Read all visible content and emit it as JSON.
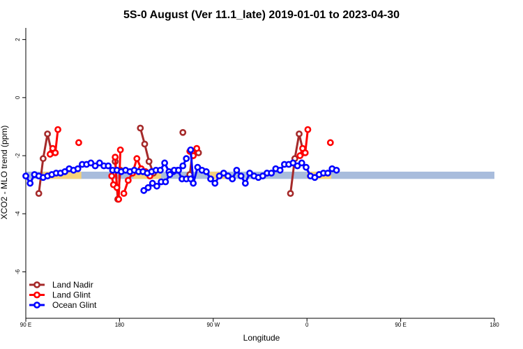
{
  "chart_data": {
    "type": "line",
    "title": "5S-0 August (Ver 11.1_late)   2019-01-01 to 2023-04-30",
    "xlabel": "Longitude",
    "ylabel": "XCO2 - MLO trend (ppm)",
    "xlim": [
      -90,
      180
    ],
    "ylim": [
      -7.6,
      2.4
    ],
    "xticks": [
      -90,
      -36,
      18,
      72,
      126,
      180
    ],
    "xtick_labels": [
      "90 E",
      "180",
      "90 W",
      "0",
      "90 E",
      "180"
    ],
    "yticks": [
      -6,
      -4,
      -2,
      0,
      2
    ],
    "ytick_labels": [
      "-6",
      "-4",
      "-2",
      "0",
      "2"
    ],
    "legend_position": "bottom-left",
    "background_band": {
      "y_range": [
        -2.8,
        -2.55
      ],
      "base_color": "#a8bcdc",
      "land_color": "#f6d27a",
      "land_ranges": [
        [
          -80,
          -58
        ],
        [
          -28,
          -12
        ],
        [
          16,
          26
        ],
        [
          72,
          86
        ]
      ]
    },
    "series": [
      {
        "name": "Land Nadir",
        "color": "#a52a2a",
        "segments": [
          [
            [
              -82.5,
              -3.3
            ],
            [
              -80.0,
              -2.1
            ],
            [
              -77.5,
              -1.25
            ],
            [
              -75.0,
              -1.9
            ]
          ],
          [
            [
              -38.5,
              -2.2
            ],
            [
              -37.0,
              -3.5
            ],
            [
              -35.5,
              -2.5
            ]
          ],
          [
            [
              -24.0,
              -1.05
            ],
            [
              -21.5,
              -1.6
            ],
            [
              -19.0,
              -2.2
            ],
            [
              -16.5,
              -2.6
            ]
          ],
          [
            [
              4.5,
              -2.65
            ],
            [
              6.0,
              -1.9
            ]
          ],
          [
            [
              62.5,
              -3.3
            ],
            [
              65.0,
              -2.1
            ],
            [
              67.5,
              -1.25
            ],
            [
              70.0,
              -1.9
            ]
          ]
        ],
        "points": [
          [
            0.5,
            -1.2
          ],
          [
            9.5,
            -1.9
          ]
        ]
      },
      {
        "name": "Land Glint",
        "color": "#ff0000",
        "segments": [
          [
            [
              -76.0,
              -1.95
            ],
            [
              -74.5,
              -1.75
            ],
            [
              -73.0,
              -1.9
            ],
            [
              -71.5,
              -1.1
            ]
          ],
          [
            [
              -40.5,
              -2.7
            ],
            [
              -39.5,
              -3.0
            ]
          ],
          [
            [
              -38.5,
              -2.05
            ],
            [
              -37.5,
              -3.1
            ],
            [
              -36.5,
              -3.5
            ],
            [
              -35.5,
              -1.8
            ]
          ],
          [
            [
              -33.5,
              -3.3
            ],
            [
              -31.0,
              -2.85
            ],
            [
              -28.5,
              -2.6
            ],
            [
              -26.0,
              -2.1
            ],
            [
              -23.5,
              -2.45
            ],
            [
              -21.0,
              -2.55
            ],
            [
              -18.5,
              -2.7
            ]
          ],
          [
            [
              4.5,
              -1.85
            ],
            [
              6.5,
              -2.0
            ],
            [
              8.5,
              -1.75
            ]
          ],
          [
            [
              68.0,
              -2.0
            ],
            [
              69.5,
              -1.75
            ],
            [
              71.0,
              -1.9
            ],
            [
              72.5,
              -1.1
            ]
          ]
        ],
        "points": [
          [
            -59.5,
            -1.55
          ],
          [
            85.5,
            -1.55
          ]
        ]
      },
      {
        "name": "Ocean Glint",
        "color": "#0000ff",
        "segments": [
          [
            [
              -90.0,
              -2.7
            ],
            [
              -87.5,
              -2.95
            ],
            [
              -85.0,
              -2.65
            ],
            [
              -82.5,
              -2.7
            ],
            [
              -80.0,
              -2.75
            ],
            [
              -77.5,
              -2.7
            ],
            [
              -75.0,
              -2.65
            ],
            [
              -72.5,
              -2.6
            ],
            [
              -70.0,
              -2.6
            ],
            [
              -67.5,
              -2.55
            ],
            [
              -65.0,
              -2.45
            ],
            [
              -62.5,
              -2.5
            ],
            [
              -60.0,
              -2.45
            ],
            [
              -57.5,
              -2.3
            ],
            [
              -55.0,
              -2.3
            ],
            [
              -52.5,
              -2.25
            ],
            [
              -50.0,
              -2.35
            ],
            [
              -47.5,
              -2.25
            ],
            [
              -45.0,
              -2.35
            ],
            [
              -42.5,
              -2.35
            ],
            [
              -40.0,
              -2.5
            ],
            [
              -37.5,
              -2.5
            ],
            [
              -35.0,
              -2.55
            ],
            [
              -32.5,
              -2.5
            ],
            [
              -30.0,
              -2.55
            ],
            [
              -27.5,
              -2.5
            ],
            [
              -25.0,
              -2.55
            ],
            [
              -22.5,
              -2.55
            ],
            [
              -20.0,
              -2.6
            ],
            [
              -17.5,
              -2.55
            ],
            [
              -15.0,
              -2.5
            ],
            [
              -12.5,
              -2.5
            ],
            [
              -10.0,
              -2.25
            ],
            [
              -7.5,
              -2.55
            ],
            [
              -5.0,
              -2.55
            ],
            [
              -2.5,
              -2.5
            ],
            [
              0.0,
              -2.8
            ],
            [
              2.5,
              -2.8
            ],
            [
              5.0,
              -2.8
            ]
          ],
          [
            [
              -22.0,
              -3.2
            ],
            [
              -19.5,
              -3.1
            ],
            [
              -17.0,
              -2.95
            ],
            [
              -14.5,
              -3.05
            ],
            [
              -12.0,
              -2.9
            ],
            [
              -9.5,
              -2.9
            ],
            [
              -7.0,
              -2.65
            ],
            [
              -4.5,
              -2.5
            ],
            [
              -2.0,
              -2.5
            ],
            [
              0.5,
              -2.35
            ],
            [
              2.5,
              -2.1
            ]
          ],
          [
            [
              5.0,
              -1.8
            ],
            [
              6.5,
              -2.95
            ],
            [
              9.0,
              -2.4
            ],
            [
              11.5,
              -2.5
            ],
            [
              14.0,
              -2.55
            ],
            [
              16.5,
              -2.8
            ],
            [
              19.0,
              -2.95
            ],
            [
              21.5,
              -2.7
            ],
            [
              24.0,
              -2.6
            ],
            [
              26.5,
              -2.7
            ],
            [
              29.0,
              -2.8
            ],
            [
              31.5,
              -2.5
            ],
            [
              34.0,
              -2.7
            ],
            [
              36.5,
              -2.95
            ],
            [
              39.0,
              -2.6
            ],
            [
              41.5,
              -2.7
            ],
            [
              44.0,
              -2.75
            ],
            [
              46.5,
              -2.7
            ],
            [
              49.0,
              -2.6
            ],
            [
              51.5,
              -2.6
            ],
            [
              54.0,
              -2.45
            ],
            [
              56.5,
              -2.5
            ],
            [
              59.0,
              -2.3
            ],
            [
              61.5,
              -2.3
            ],
            [
              64.0,
              -2.25
            ],
            [
              66.5,
              -2.35
            ],
            [
              69.0,
              -2.25
            ],
            [
              71.5,
              -2.4
            ],
            [
              74.0,
              -2.7
            ],
            [
              76.5,
              -2.75
            ],
            [
              79.0,
              -2.65
            ],
            [
              81.5,
              -2.6
            ],
            [
              84.0,
              -2.6
            ],
            [
              86.5,
              -2.45
            ],
            [
              89.0,
              -2.5
            ]
          ]
        ],
        "points": []
      }
    ]
  }
}
